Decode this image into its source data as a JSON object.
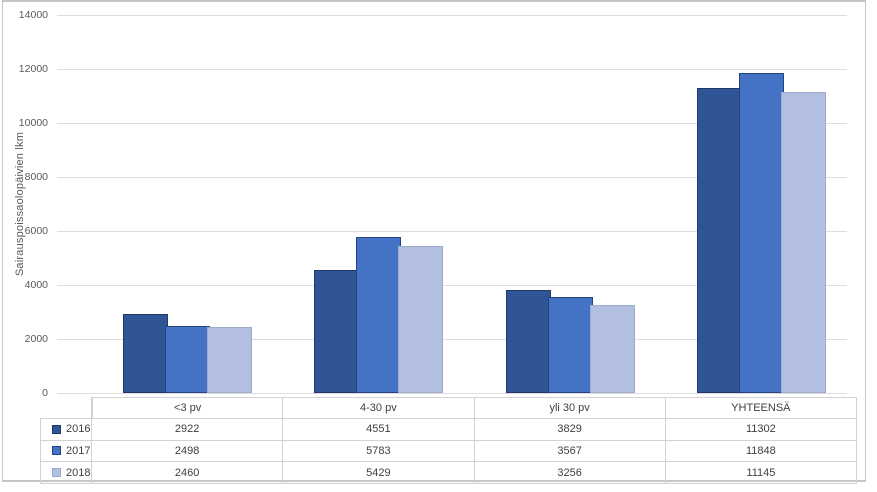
{
  "chart_data": {
    "type": "bar",
    "title": "",
    "ylabel": "Sairauspoissaolopäivien lkm",
    "xlabel": "",
    "categories": [
      "<3 pv",
      "4-30 pv",
      "yli 30 pv",
      "YHTEENSÄ"
    ],
    "series": [
      {
        "name": "2016",
        "values": [
          2922,
          4551,
          3829,
          11302
        ],
        "color": "#2F5597",
        "border_color": "#1F3864"
      },
      {
        "name": "2017",
        "values": [
          2498,
          5783,
          3567,
          11848
        ],
        "color": "#4472C4",
        "border_color": "#24437F"
      },
      {
        "name": "2018",
        "values": [
          2460,
          5429,
          3256,
          11145
        ],
        "color": "#B3BFE0",
        "border_color": "#9FABCD"
      }
    ],
    "ylim": [
      0,
      14000
    ],
    "y_ticks": [
      0,
      2000,
      4000,
      6000,
      8000,
      10000,
      12000,
      14000
    ],
    "grid": true,
    "legend_position": "data-table-left",
    "data_table": true
  },
  "colors": {
    "background": "#FFFFFF",
    "gridline": "#DDDDDD",
    "axis_text": "#595959",
    "table_text": "#404040",
    "table_border": "#D2D2D2",
    "frame_border": "#C6C6C6"
  }
}
